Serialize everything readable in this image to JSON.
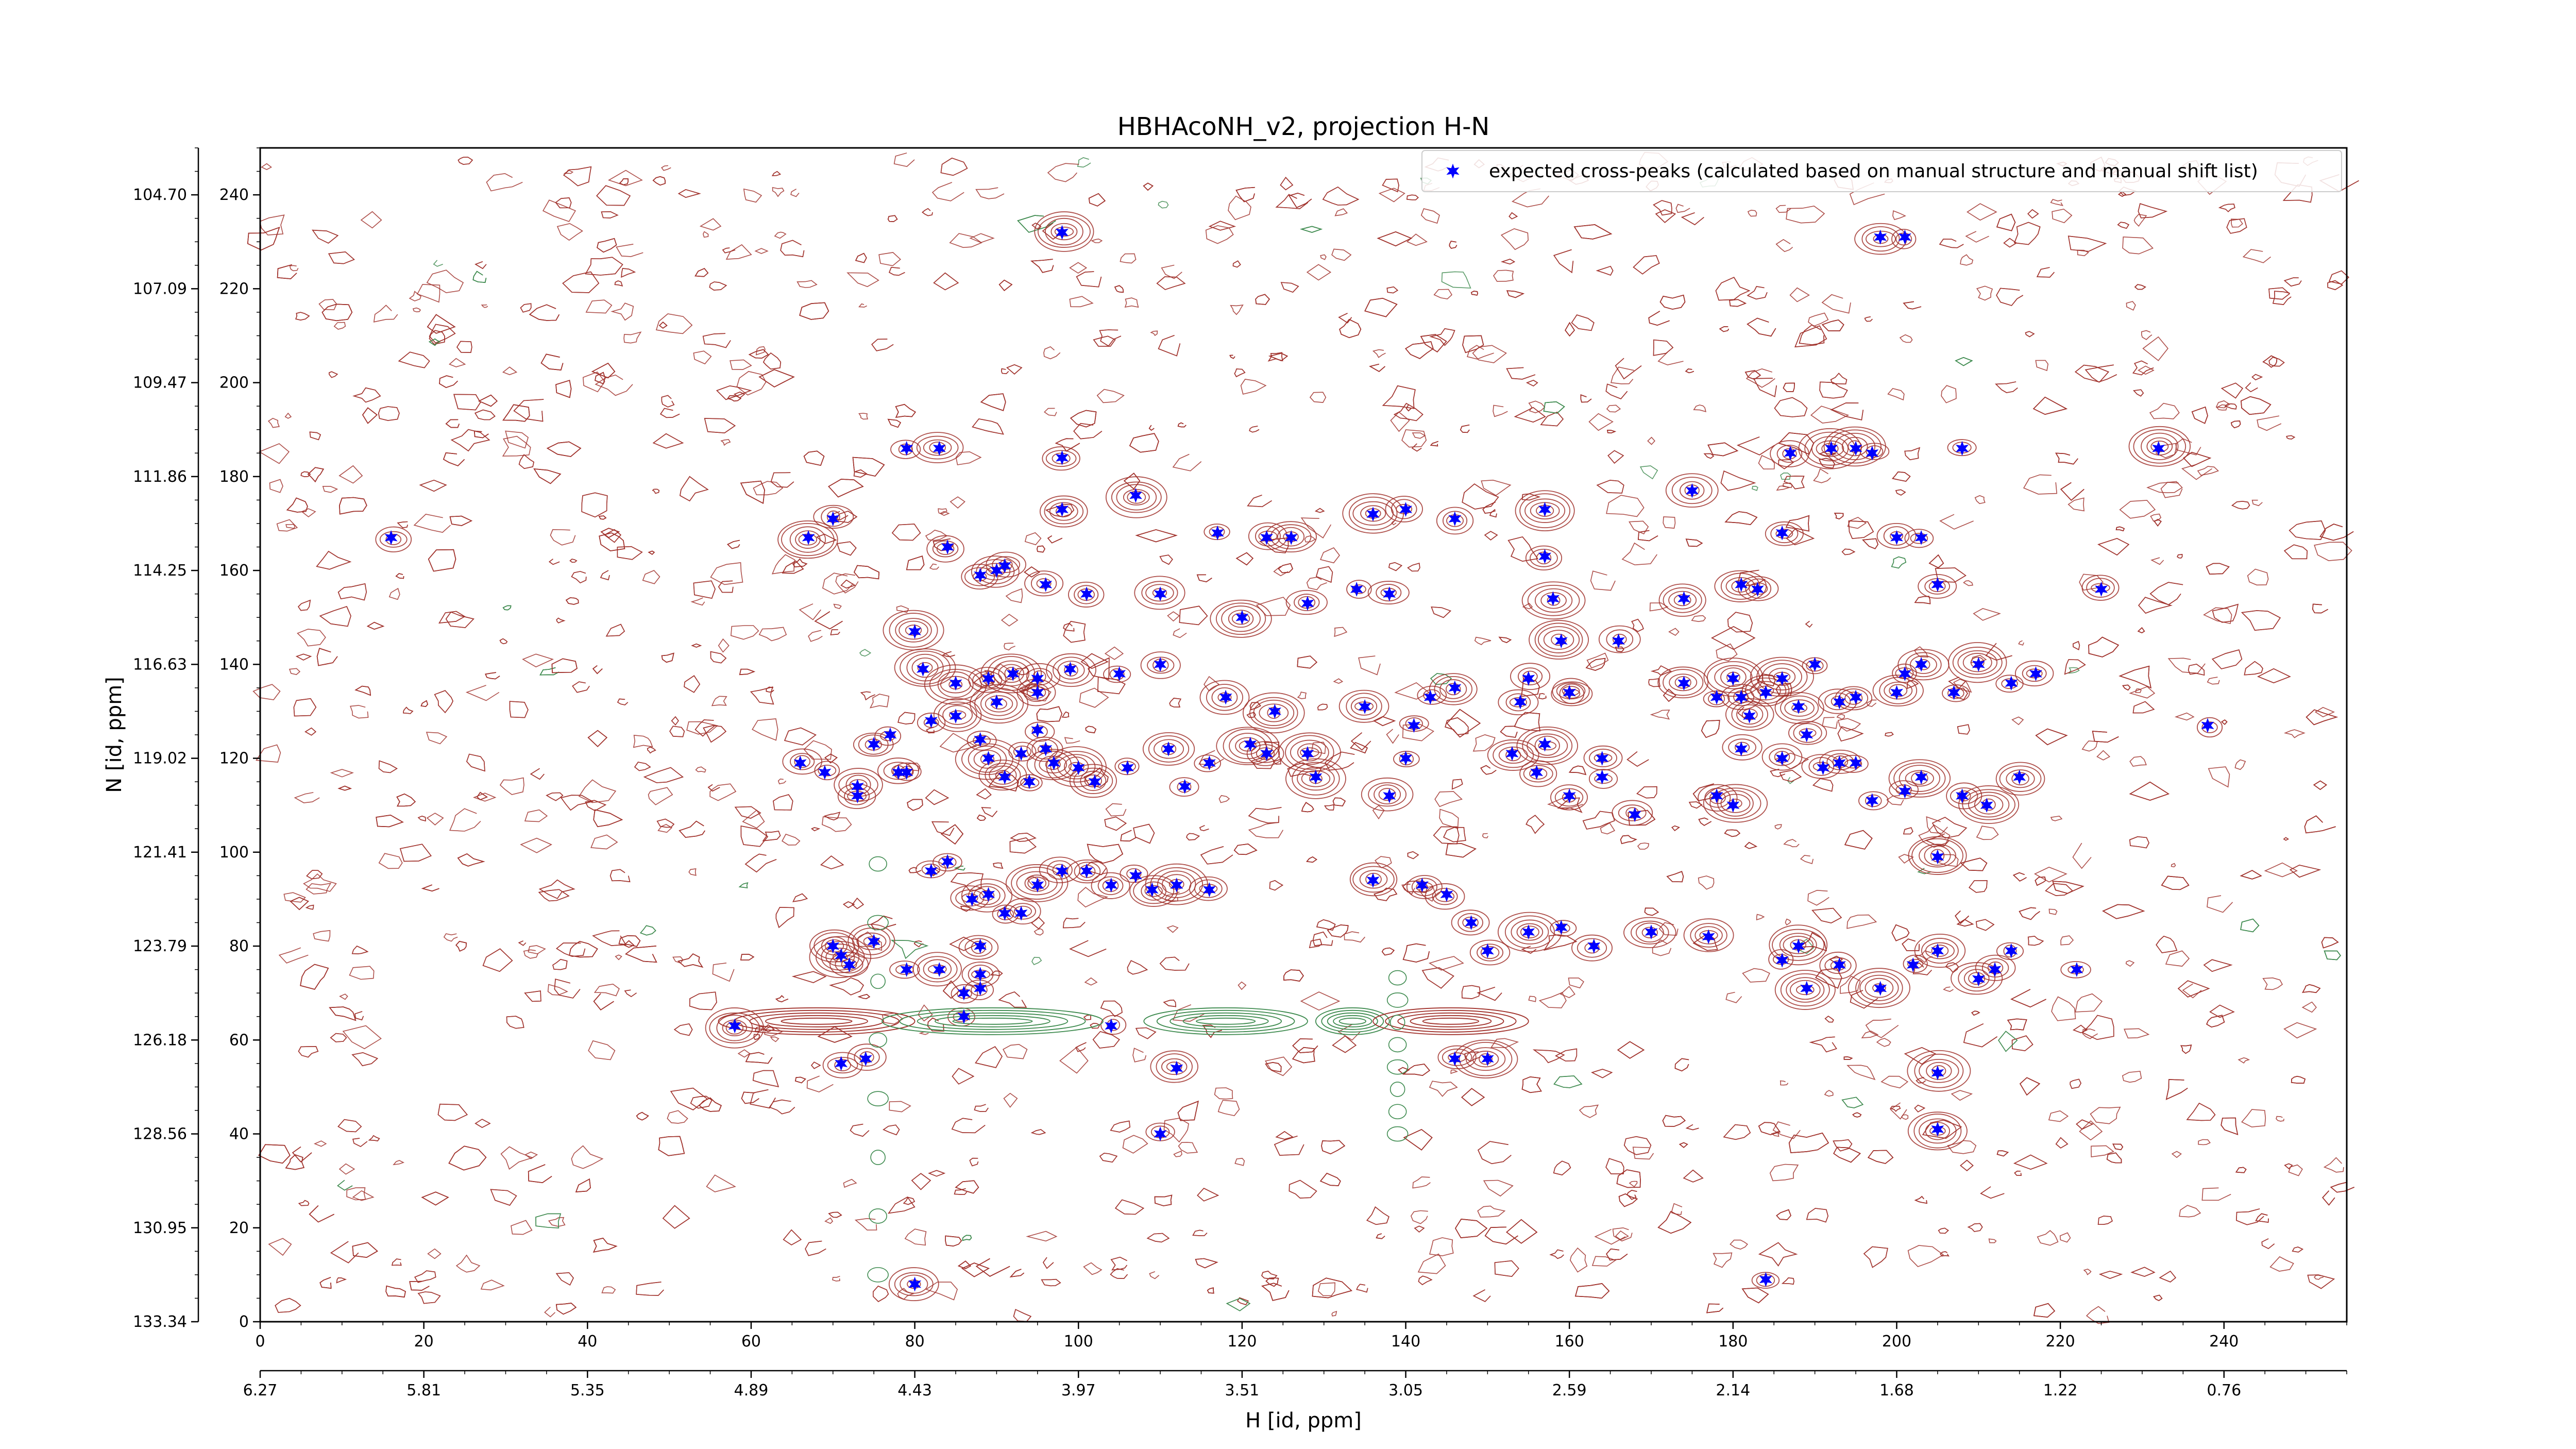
{
  "chart_data": {
    "type": "scatter",
    "title": "HBHAcoNH_v2, projection H-N",
    "xlabel": "H [id, ppm]",
    "ylabel": "N [id, ppm]",
    "xlim": [
      0,
      255
    ],
    "ylim": [
      0,
      250
    ],
    "x_index_ticks": [
      0,
      20,
      40,
      60,
      80,
      100,
      120,
      140,
      160,
      180,
      200,
      220,
      240
    ],
    "y_index_ticks": [
      0,
      20,
      40,
      60,
      80,
      100,
      120,
      140,
      160,
      180,
      200,
      220,
      240
    ],
    "x_ppm_ticks": [
      "6.27",
      "5.81",
      "5.35",
      "4.89",
      "4.43",
      "3.97",
      "3.51",
      "3.05",
      "2.59",
      "2.14",
      "1.68",
      "1.22",
      "0.76"
    ],
    "y_ppm_ticks": [
      "133.34",
      "130.95",
      "128.56",
      "126.18",
      "123.79",
      "121.41",
      "119.02",
      "116.63",
      "114.25",
      "111.86",
      "109.47",
      "107.09",
      "104.70"
    ],
    "legend": {
      "position": "top-right",
      "label": "expected cross-peaks (calculated based on manual structure and manual shift list)"
    },
    "colors": {
      "marker": "#0000ff",
      "positive_contour": "#a0302a",
      "negative_contour": "#3d8a4e",
      "axes": "#000000"
    },
    "series": [
      {
        "name": "expected cross-peaks (calculated based on manual structure and manual shift list)",
        "points": [
          [
            16,
            167
          ],
          [
            98,
            232
          ],
          [
            198,
            231
          ],
          [
            201,
            231
          ],
          [
            79,
            186
          ],
          [
            83,
            186
          ],
          [
            98,
            184
          ],
          [
            107,
            176
          ],
          [
            98,
            173
          ],
          [
            67,
            167
          ],
          [
            70,
            171
          ],
          [
            117,
            168
          ],
          [
            123,
            167
          ],
          [
            126,
            167
          ],
          [
            136,
            172
          ],
          [
            140,
            173
          ],
          [
            146,
            171
          ],
          [
            157,
            173
          ],
          [
            157,
            163
          ],
          [
            175,
            177
          ],
          [
            187,
            185
          ],
          [
            192,
            186
          ],
          [
            195,
            186
          ],
          [
            197,
            185
          ],
          [
            208,
            186
          ],
          [
            232,
            186
          ],
          [
            186,
            168
          ],
          [
            200,
            167
          ],
          [
            203,
            167
          ],
          [
            88,
            159
          ],
          [
            90,
            160
          ],
          [
            96,
            157
          ],
          [
            101,
            155
          ],
          [
            110,
            155
          ],
          [
            120,
            150
          ],
          [
            128,
            153
          ],
          [
            134,
            156
          ],
          [
            138,
            155
          ],
          [
            158,
            154
          ],
          [
            174,
            154
          ],
          [
            181,
            157
          ],
          [
            183,
            156
          ],
          [
            205,
            157
          ],
          [
            225,
            156
          ],
          [
            84,
            165
          ],
          [
            91,
            161
          ],
          [
            159,
            145
          ],
          [
            166,
            145
          ],
          [
            155,
            137
          ],
          [
            160,
            134
          ],
          [
            80,
            147
          ],
          [
            81,
            139
          ],
          [
            85,
            136
          ],
          [
            89,
            137
          ],
          [
            90,
            132
          ],
          [
            92,
            138
          ],
          [
            95,
            137
          ],
          [
            95,
            134
          ],
          [
            99,
            139
          ],
          [
            105,
            138
          ],
          [
            110,
            140
          ],
          [
            118,
            133
          ],
          [
            124,
            130
          ],
          [
            128,
            121
          ],
          [
            135,
            131
          ],
          [
            141,
            127
          ],
          [
            143,
            133
          ],
          [
            146,
            135
          ],
          [
            154,
            132
          ],
          [
            157,
            123
          ],
          [
            160,
            134
          ],
          [
            164,
            116
          ],
          [
            174,
            136
          ],
          [
            178,
            133
          ],
          [
            180,
            137
          ],
          [
            181,
            133
          ],
          [
            182,
            129
          ],
          [
            184,
            134
          ],
          [
            186,
            137
          ],
          [
            188,
            131
          ],
          [
            190,
            140
          ],
          [
            193,
            132
          ],
          [
            195,
            133
          ],
          [
            200,
            134
          ],
          [
            201,
            138
          ],
          [
            203,
            140
          ],
          [
            207,
            134
          ],
          [
            210,
            140
          ],
          [
            214,
            136
          ],
          [
            217,
            138
          ],
          [
            238,
            127
          ],
          [
            75,
            123
          ],
          [
            77,
            125
          ],
          [
            79,
            117
          ],
          [
            82,
            128
          ],
          [
            85,
            129
          ],
          [
            88,
            124
          ],
          [
            89,
            120
          ],
          [
            91,
            116
          ],
          [
            93,
            121
          ],
          [
            94,
            115
          ],
          [
            95,
            126
          ],
          [
            96,
            122
          ],
          [
            97,
            119
          ],
          [
            100,
            118
          ],
          [
            102,
            115
          ],
          [
            106,
            118
          ],
          [
            113,
            114
          ],
          [
            116,
            119
          ],
          [
            121,
            123
          ],
          [
            123,
            121
          ],
          [
            129,
            116
          ],
          [
            138,
            112
          ],
          [
            140,
            120
          ],
          [
            153,
            121
          ],
          [
            156,
            117
          ],
          [
            160,
            112
          ],
          [
            164,
            120
          ],
          [
            168,
            108
          ],
          [
            178,
            112
          ],
          [
            180,
            110
          ],
          [
            181,
            122
          ],
          [
            186,
            120
          ],
          [
            189,
            125
          ],
          [
            191,
            118
          ],
          [
            193,
            119
          ],
          [
            195,
            119
          ],
          [
            197,
            111
          ],
          [
            201,
            113
          ],
          [
            203,
            116
          ],
          [
            208,
            112
          ],
          [
            211,
            110
          ],
          [
            215,
            116
          ],
          [
            66,
            119
          ],
          [
            69,
            117
          ],
          [
            73,
            114
          ],
          [
            78,
            117
          ],
          [
            82,
            96
          ],
          [
            84,
            98
          ],
          [
            87,
            90
          ],
          [
            89,
            91
          ],
          [
            91,
            87
          ],
          [
            93,
            87
          ],
          [
            95,
            93
          ],
          [
            98,
            96
          ],
          [
            101,
            96
          ],
          [
            104,
            93
          ],
          [
            107,
            95
          ],
          [
            109,
            92
          ],
          [
            112,
            93
          ],
          [
            116,
            92
          ],
          [
            136,
            94
          ],
          [
            142,
            93
          ],
          [
            145,
            91
          ],
          [
            148,
            85
          ],
          [
            150,
            79
          ],
          [
            155,
            83
          ],
          [
            159,
            84
          ],
          [
            163,
            80
          ],
          [
            170,
            83
          ],
          [
            177,
            82
          ],
          [
            186,
            77
          ],
          [
            188,
            80
          ],
          [
            193,
            76
          ],
          [
            198,
            71
          ],
          [
            202,
            76
          ],
          [
            205,
            79
          ],
          [
            210,
            73
          ],
          [
            212,
            75
          ],
          [
            214,
            79
          ],
          [
            75,
            81
          ],
          [
            79,
            75
          ],
          [
            83,
            75
          ],
          [
            86,
            70
          ],
          [
            88,
            80
          ],
          [
            70,
            80
          ],
          [
            71,
            78
          ],
          [
            72,
            76
          ],
          [
            88,
            74
          ],
          [
            88,
            71
          ],
          [
            86,
            65
          ],
          [
            71,
            55
          ],
          [
            74,
            56
          ],
          [
            146,
            56
          ],
          [
            150,
            56
          ],
          [
            112,
            54
          ],
          [
            205,
            53
          ],
          [
            110,
            40
          ],
          [
            205,
            41
          ],
          [
            80,
            8
          ],
          [
            184,
            9
          ],
          [
            58,
            63
          ],
          [
            104,
            63
          ],
          [
            189,
            71
          ],
          [
            222,
            75
          ],
          [
            205,
            99
          ],
          [
            73,
            112
          ],
          [
            111,
            122
          ]
        ]
      }
    ]
  }
}
